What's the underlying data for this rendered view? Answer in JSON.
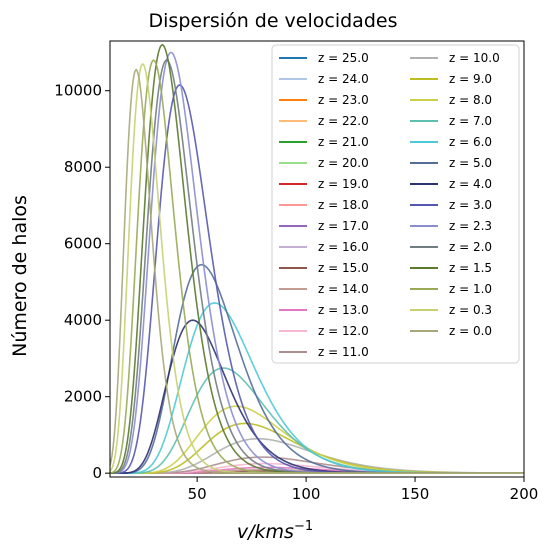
{
  "chart_data": {
    "type": "line",
    "title": "Dispersión de velocidades",
    "xlabel_italic": "v/kms",
    "xlabel_sup": "−1",
    "ylabel": "Número de halos",
    "xlim": [
      10,
      200
    ],
    "ylim": [
      -100,
      11300
    ],
    "xticks": [
      50,
      100,
      150,
      200
    ],
    "yticks": [
      0,
      2000,
      4000,
      6000,
      8000,
      10000
    ],
    "grid": false,
    "legend_position": "top-right",
    "legend_columns": 2,
    "series": [
      {
        "name": "z = 25.0",
        "color": "#1f77b4",
        "peak_x": 75,
        "peak_y": 2
      },
      {
        "name": "z = 24.0",
        "color": "#aec7e8",
        "peak_x": 75,
        "peak_y": 3
      },
      {
        "name": "z = 23.0",
        "color": "#ff7f0e",
        "peak_x": 76,
        "peak_y": 4
      },
      {
        "name": "z = 22.0",
        "color": "#ffbb78",
        "peak_x": 76,
        "peak_y": 6
      },
      {
        "name": "z = 21.0",
        "color": "#2ca02c",
        "peak_x": 77,
        "peak_y": 8
      },
      {
        "name": "z = 20.0",
        "color": "#98df8a",
        "peak_x": 77,
        "peak_y": 11
      },
      {
        "name": "z = 19.0",
        "color": "#d62728",
        "peak_x": 78,
        "peak_y": 15
      },
      {
        "name": "z = 18.0",
        "color": "#ff9896",
        "peak_x": 78,
        "peak_y": 20
      },
      {
        "name": "z = 17.0",
        "color": "#9467bd",
        "peak_x": 79,
        "peak_y": 28
      },
      {
        "name": "z = 16.0",
        "color": "#c5b0d5",
        "peak_x": 80,
        "peak_y": 40
      },
      {
        "name": "z = 15.0",
        "color": "#8c564b",
        "peak_x": 81,
        "peak_y": 60
      },
      {
        "name": "z = 14.0",
        "color": "#c49c94",
        "peak_x": 82,
        "peak_y": 90
      },
      {
        "name": "z = 13.0",
        "color": "#e377c2",
        "peak_x": 82,
        "peak_y": 150
      },
      {
        "name": "z = 12.0",
        "color": "#f7b6d2",
        "peak_x": 81,
        "peak_y": 250
      },
      {
        "name": "z = 11.0",
        "color": "#ad8e8e",
        "peak_x": 80,
        "peak_y": 420
      },
      {
        "name": "z = 10.0",
        "color": "#b0b0b0",
        "peak_x": 78,
        "peak_y": 900
      },
      {
        "name": "z = 9.0",
        "color": "#bcbd22",
        "peak_x": 72,
        "peak_y": 1300
      },
      {
        "name": "z = 8.0",
        "color": "#cccf4a",
        "peak_x": 68,
        "peak_y": 1750
      },
      {
        "name": "z = 7.0",
        "color": "#5ebfb0",
        "peak_x": 62,
        "peak_y": 2750
      },
      {
        "name": "z = 6.0",
        "color": "#4dc9d6",
        "peak_x": 58,
        "peak_y": 4450
      },
      {
        "name": "z = 5.0",
        "color": "#546e99",
        "peak_x": 52,
        "peak_y": 5450
      },
      {
        "name": "z = 4.0",
        "color": "#2d3270",
        "peak_x": 48,
        "peak_y": 4000
      },
      {
        "name": "z = 3.0",
        "color": "#5558b0",
        "peak_x": 42,
        "peak_y": 10150
      },
      {
        "name": "z = 2.3",
        "color": "#8a8dd0",
        "peak_x": 38,
        "peak_y": 11000
      },
      {
        "name": "z = 2.0",
        "color": "#707d80",
        "peak_x": 36,
        "peak_y": 10800
      },
      {
        "name": "z = 1.5",
        "color": "#5a7a2e",
        "peak_x": 34,
        "peak_y": 11200
      },
      {
        "name": "z = 1.0",
        "color": "#98aa55",
        "peak_x": 30,
        "peak_y": 10800
      },
      {
        "name": "z = 0.3",
        "color": "#c8d070",
        "peak_x": 25,
        "peak_y": 10700
      },
      {
        "name": "z = 0.0",
        "color": "#a8a878",
        "peak_x": 22,
        "peak_y": 10550
      }
    ]
  }
}
